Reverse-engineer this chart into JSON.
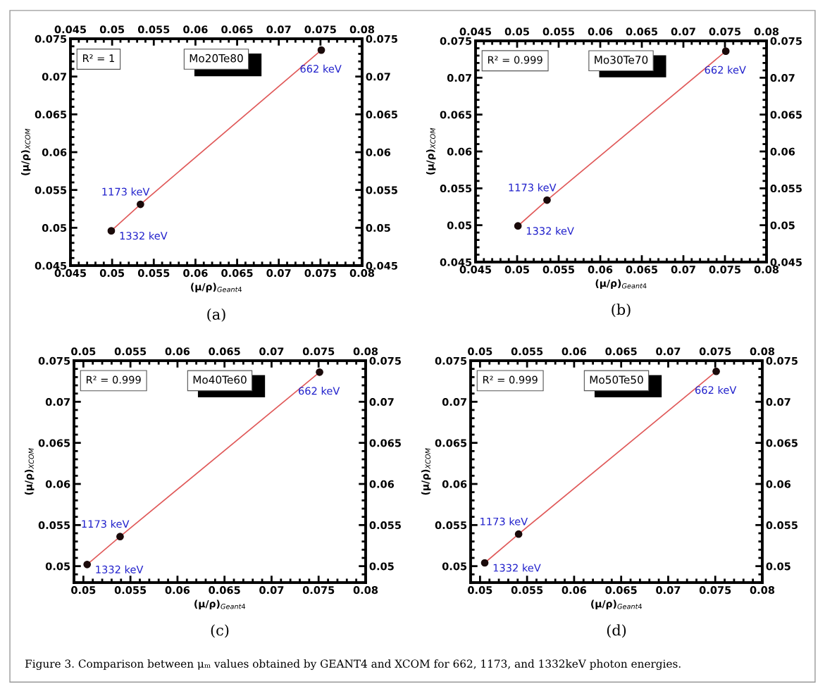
{
  "chart_data": [
    {
      "type": "scatter",
      "title": "Mo20Te80",
      "xlabel": "(μ/ρ)$_{Geant4}$",
      "ylabel": "(μ/ρ)$_{XCOM}$",
      "xlim": [
        0.045,
        0.08
      ],
      "xticks": [
        0.045,
        0.05,
        0.055,
        0.06,
        0.065,
        0.07,
        0.075,
        0.08
      ],
      "x2lim": [
        0.045,
        0.08
      ],
      "x2ticks": [
        0.045,
        0.05,
        0.055,
        0.06,
        0.065,
        0.07,
        0.075,
        0.08
      ],
      "ylim": [
        0.045,
        0.075
      ],
      "yticks": [
        0.045,
        0.05,
        0.055,
        0.06,
        0.065,
        0.07,
        0.075
      ],
      "y2lim": [
        0.045,
        0.075
      ],
      "y2ticks": [
        0.045,
        0.05,
        0.055,
        0.06,
        0.065,
        0.07,
        0.075
      ],
      "grid": false,
      "legend": false,
      "series": [
        {
          "type": "line",
          "marker": "none",
          "color": "#e05a5a",
          "x": [
            0.0499,
            0.0534,
            0.0751
          ],
          "values": [
            0.0496,
            0.0531,
            0.0735
          ]
        },
        {
          "marker": "circle",
          "color": "#1a0a0a",
          "x": [
            0.0499,
            0.0534,
            0.0751
          ],
          "values": [
            0.0496,
            0.0531,
            0.0735
          ]
        }
      ],
      "annotations": [
        {
          "text": "662 keV",
          "x": 0.0751,
          "y": 0.0735
        },
        {
          "text": "1173 keV",
          "x": 0.0534,
          "y": 0.0531
        },
        {
          "text": "1332 keV",
          "x": 0.0499,
          "y": 0.0496
        },
        "R² = 1",
        "(a)"
      ]
    },
    {
      "type": "scatter",
      "title": "Mo30Te70",
      "xlabel": "(μ/ρ)$_{Geant4}$",
      "ylabel": "(μ/ρ)$_{XCOM}$",
      "xlim": [
        0.045,
        0.08
      ],
      "xticks": [
        0.045,
        0.05,
        0.055,
        0.06,
        0.065,
        0.07,
        0.075,
        0.08
      ],
      "x2lim": [
        0.045,
        0.08
      ],
      "x2ticks": [
        0.045,
        0.05,
        0.055,
        0.06,
        0.065,
        0.07,
        0.075,
        0.08
      ],
      "ylim": [
        0.045,
        0.075
      ],
      "yticks": [
        0.045,
        0.05,
        0.055,
        0.06,
        0.065,
        0.07,
        0.075
      ],
      "y2lim": [
        0.045,
        0.075
      ],
      "y2ticks": [
        0.045,
        0.05,
        0.055,
        0.06,
        0.065,
        0.07,
        0.075
      ],
      "grid": false,
      "legend": false,
      "series": [
        {
          "type": "line",
          "marker": "none",
          "color": "#e05a5a",
          "x": [
            0.0501,
            0.0536,
            0.0751
          ],
          "values": [
            0.0499,
            0.0534,
            0.0736
          ]
        },
        {
          "marker": "circle",
          "color": "#1a0a0a",
          "x": [
            0.0501,
            0.0536,
            0.0751
          ],
          "values": [
            0.0499,
            0.0534,
            0.0736
          ]
        }
      ],
      "annotations": [
        {
          "text": "662 keV",
          "x": 0.0751,
          "y": 0.0736
        },
        {
          "text": "1173 keV",
          "x": 0.0536,
          "y": 0.0534
        },
        {
          "text": "1332 keV",
          "x": 0.0501,
          "y": 0.0499
        },
        "R² = 0.999",
        "(b)"
      ]
    },
    {
      "type": "scatter",
      "title": "Mo40Te60",
      "xlabel": "(μ/ρ)$_{Geant4}$",
      "ylabel": "(μ/ρ)$_{XCOM}$",
      "xlim": [
        0.049,
        0.08
      ],
      "xticks": [
        0.05,
        0.055,
        0.06,
        0.065,
        0.07,
        0.075,
        0.08
      ],
      "x2lim": [
        0.049,
        0.08
      ],
      "x2ticks": [
        0.05,
        0.055,
        0.06,
        0.065,
        0.07,
        0.075,
        0.08
      ],
      "ylim": [
        0.048,
        0.075
      ],
      "yticks": [
        0.05,
        0.055,
        0.06,
        0.065,
        0.07,
        0.075
      ],
      "y2lim": [
        0.048,
        0.075
      ],
      "y2ticks": [
        0.05,
        0.055,
        0.06,
        0.065,
        0.07,
        0.075
      ],
      "grid": false,
      "legend": false,
      "series": [
        {
          "type": "line",
          "marker": "none",
          "color": "#e05a5a",
          "x": [
            0.0504,
            0.0539,
            0.0751
          ],
          "values": [
            0.0502,
            0.0536,
            0.0736
          ]
        },
        {
          "marker": "circle",
          "color": "#1a0a0a",
          "x": [
            0.0504,
            0.0539,
            0.0751
          ],
          "values": [
            0.0502,
            0.0536,
            0.0736
          ]
        }
      ],
      "annotations": [
        {
          "text": "662 keV",
          "x": 0.0751,
          "y": 0.0736
        },
        {
          "text": "1173 keV",
          "x": 0.0539,
          "y": 0.0536
        },
        {
          "text": "1332 keV",
          "x": 0.0504,
          "y": 0.0502
        },
        "R² = 0.999",
        "(c)"
      ]
    },
    {
      "type": "scatter",
      "title": "Mo50Te50",
      "xlabel": "(μ/ρ)$_{Geant4}$",
      "ylabel": "(μ/ρ)$_{XCOM}$",
      "xlim": [
        0.049,
        0.08
      ],
      "xticks": [
        0.05,
        0.055,
        0.06,
        0.065,
        0.07,
        0.075,
        0.08
      ],
      "x2lim": [
        0.049,
        0.08
      ],
      "x2ticks": [
        0.05,
        0.055,
        0.06,
        0.065,
        0.07,
        0.075,
        0.08
      ],
      "ylim": [
        0.048,
        0.075
      ],
      "yticks": [
        0.05,
        0.055,
        0.06,
        0.065,
        0.07,
        0.075
      ],
      "y2lim": [
        0.048,
        0.075
      ],
      "y2ticks": [
        0.05,
        0.055,
        0.06,
        0.065,
        0.07,
        0.075
      ],
      "grid": false,
      "legend": false,
      "series": [
        {
          "type": "line",
          "marker": "none",
          "color": "#e05a5a",
          "x": [
            0.0505,
            0.0541,
            0.0751
          ],
          "values": [
            0.0504,
            0.0539,
            0.0737
          ]
        },
        {
          "marker": "circle",
          "color": "#1a0a0a",
          "x": [
            0.0505,
            0.0541,
            0.0751
          ],
          "values": [
            0.0504,
            0.0539,
            0.0737
          ]
        }
      ],
      "annotations": [
        {
          "text": "662 keV",
          "x": 0.0751,
          "y": 0.0737
        },
        {
          "text": "1173 keV",
          "x": 0.0541,
          "y": 0.0539
        },
        {
          "text": "1332 keV",
          "x": 0.0505,
          "y": 0.0504
        },
        "R² = 0.999",
        "(d)",
        "Figure 3. Comparison between μₘ values obtained by GEANT4 and XCOM for 662, 1173, and 1332keV photon energies."
      ]
    }
  ]
}
